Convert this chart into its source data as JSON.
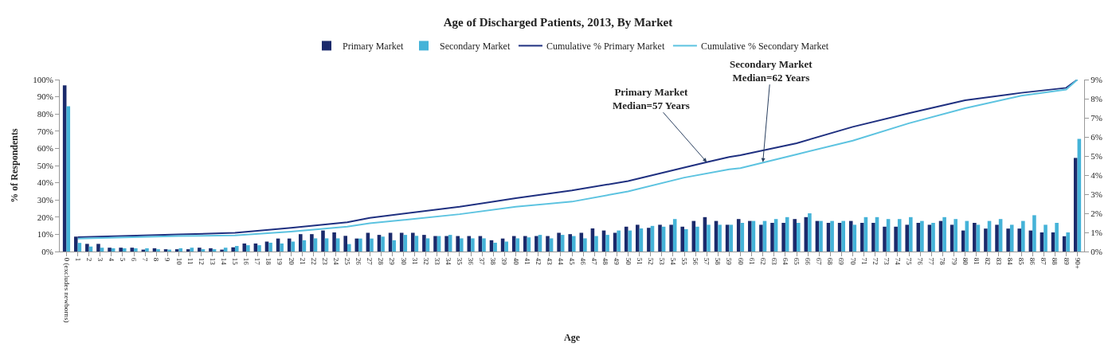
{
  "chart_data": {
    "type": "bar",
    "title": "Age of Discharged Patients, 2013, By Market",
    "xlabel": "Age",
    "ylabel": "% of Respondents",
    "categories": [
      "0 (excludes newborns)",
      "1",
      "2",
      "3",
      "4",
      "5",
      "6",
      "7",
      "8",
      "9",
      "10",
      "11",
      "12",
      "13",
      "14",
      "15",
      "16",
      "17",
      "18",
      "19",
      "20",
      "21",
      "22",
      "23",
      "24",
      "25",
      "26",
      "27",
      "28",
      "29",
      "30",
      "31",
      "32",
      "33",
      "34",
      "35",
      "36",
      "37",
      "38",
      "39",
      "40",
      "41",
      "42",
      "43",
      "44",
      "45",
      "46",
      "47",
      "48",
      "49",
      "50",
      "51",
      "52",
      "53",
      "54",
      "55",
      "56",
      "57",
      "58",
      "59",
      "60",
      "61",
      "62",
      "63",
      "64",
      "65",
      "66",
      "67",
      "68",
      "69",
      "70",
      "71",
      "72",
      "73",
      "74",
      "75",
      "76",
      "77",
      "78",
      "79",
      "80",
      "81",
      "82",
      "83",
      "84",
      "85",
      "86",
      "87",
      "88",
      "89",
      "90+"
    ],
    "series": [
      {
        "name": "Primary Market",
        "axis": "y2",
        "color": "#1b2a6b",
        "values": [
          8.7,
          0.78,
          0.4,
          0.4,
          0.2,
          0.2,
          0.2,
          0.1,
          0.17,
          0.12,
          0.12,
          0.12,
          0.2,
          0.17,
          0.1,
          0.22,
          0.42,
          0.42,
          0.52,
          0.68,
          0.68,
          0.91,
          0.91,
          1.1,
          1.0,
          0.82,
          0.68,
          0.98,
          0.87,
          0.98,
          0.98,
          0.98,
          0.87,
          0.81,
          0.81,
          0.81,
          0.81,
          0.81,
          0.59,
          0.68,
          0.81,
          0.81,
          0.81,
          0.81,
          0.98,
          0.91,
          0.98,
          1.21,
          1.1,
          0.98,
          1.3,
          1.4,
          1.24,
          1.4,
          1.4,
          1.3,
          1.6,
          1.8,
          1.6,
          1.4,
          1.7,
          1.6,
          1.4,
          1.5,
          1.5,
          1.7,
          1.8,
          1.6,
          1.5,
          1.5,
          1.6,
          1.5,
          1.5,
          1.3,
          1.3,
          1.4,
          1.5,
          1.4,
          1.6,
          1.4,
          1.1,
          1.5,
          1.2,
          1.4,
          1.2,
          1.2,
          1.1,
          1.0,
          1.0,
          0.8,
          4.9
        ]
      },
      {
        "name": "Secondary Market",
        "axis": "y2",
        "color": "#45b3d8",
        "values": [
          7.6,
          0.45,
          0.26,
          0.2,
          0.17,
          0.17,
          0.17,
          0.17,
          0.12,
          0.1,
          0.17,
          0.2,
          0.12,
          0.12,
          0.2,
          0.29,
          0.33,
          0.33,
          0.46,
          0.42,
          0.52,
          0.59,
          0.69,
          0.69,
          0.69,
          0.39,
          0.68,
          0.68,
          0.78,
          0.59,
          0.87,
          0.82,
          0.69,
          0.81,
          0.87,
          0.69,
          0.69,
          0.69,
          0.46,
          0.52,
          0.69,
          0.74,
          0.87,
          0.69,
          0.87,
          0.81,
          0.69,
          0.81,
          0.87,
          1.1,
          1.1,
          1.21,
          1.34,
          1.3,
          1.7,
          1.17,
          1.3,
          1.4,
          1.4,
          1.4,
          1.5,
          1.6,
          1.6,
          1.7,
          1.8,
          1.5,
          2.0,
          1.6,
          1.6,
          1.6,
          1.4,
          1.8,
          1.8,
          1.7,
          1.7,
          1.8,
          1.6,
          1.5,
          1.8,
          1.7,
          1.6,
          1.4,
          1.6,
          1.7,
          1.4,
          1.6,
          1.9,
          1.4,
          1.5,
          1.0,
          5.9
        ]
      },
      {
        "name": "Cumulative % Primary Market",
        "type": "line",
        "color": "#1f3080",
        "x": [
          "1",
          "5",
          "10",
          "15",
          "20",
          "25",
          "27",
          "35",
          "40",
          "45",
          "50",
          "55",
          "57",
          "59",
          "60",
          "65",
          "70",
          "75",
          "80",
          "85",
          "89",
          "90+"
        ],
        "values": [
          8.3,
          9,
          9.9,
          10.9,
          13.8,
          17,
          19.6,
          26,
          31,
          35.5,
          41,
          48.8,
          52,
          55,
          56,
          63,
          72.5,
          80.4,
          88,
          92.3,
          95.2,
          100
        ]
      },
      {
        "name": "Cumulative % Secondary Market",
        "type": "line",
        "color": "#5cc3e0",
        "x": [
          "1",
          "10",
          "15",
          "20",
          "25",
          "27",
          "35",
          "40",
          "45",
          "50",
          "55",
          "59",
          "60",
          "65",
          "70",
          "75",
          "80",
          "85",
          "89",
          "90+"
        ],
        "values": [
          7.5,
          9,
          9.4,
          11.6,
          14.5,
          16.4,
          21.7,
          26,
          29,
          35,
          43,
          47.8,
          48.5,
          56.5,
          64.5,
          74.6,
          83.3,
          90.6,
          94.2,
          100
        ]
      }
    ],
    "ylim": [
      0,
      100
    ],
    "yticks": [
      {
        "value": 0,
        "label": "0%"
      },
      {
        "value": 10,
        "label": "10%"
      },
      {
        "value": 20,
        "label": "20%"
      },
      {
        "value": 30,
        "label": "30%"
      },
      {
        "value": 40,
        "label": "40%"
      },
      {
        "value": 50,
        "label": "50%"
      },
      {
        "value": 60,
        "label": "60%"
      },
      {
        "value": 70,
        "label": "70%"
      },
      {
        "value": 80,
        "label": "80%"
      },
      {
        "value": 90,
        "label": "90%"
      },
      {
        "value": 100,
        "label": "100%"
      }
    ],
    "y2lim": [
      0,
      9
    ],
    "y2ticks": [
      {
        "value": 0,
        "label": "0%"
      },
      {
        "value": 1,
        "label": "1%"
      },
      {
        "value": 2,
        "label": "2%"
      },
      {
        "value": 3,
        "label": "3%"
      },
      {
        "value": 4,
        "label": "4%"
      },
      {
        "value": 5,
        "label": "5%"
      },
      {
        "value": 6,
        "label": "6%"
      },
      {
        "value": 7,
        "label": "7%"
      },
      {
        "value": 8,
        "label": "8%"
      },
      {
        "value": 9,
        "label": "9%"
      }
    ],
    "annotations": [
      {
        "text": "Primary Market\nMedian=57 Years",
        "x": "57",
        "y": 52
      },
      {
        "text": "Secondary Market\nMedian=62 Years",
        "x": "62",
        "y": 52
      }
    ],
    "legend": "top",
    "marker": "none"
  }
}
